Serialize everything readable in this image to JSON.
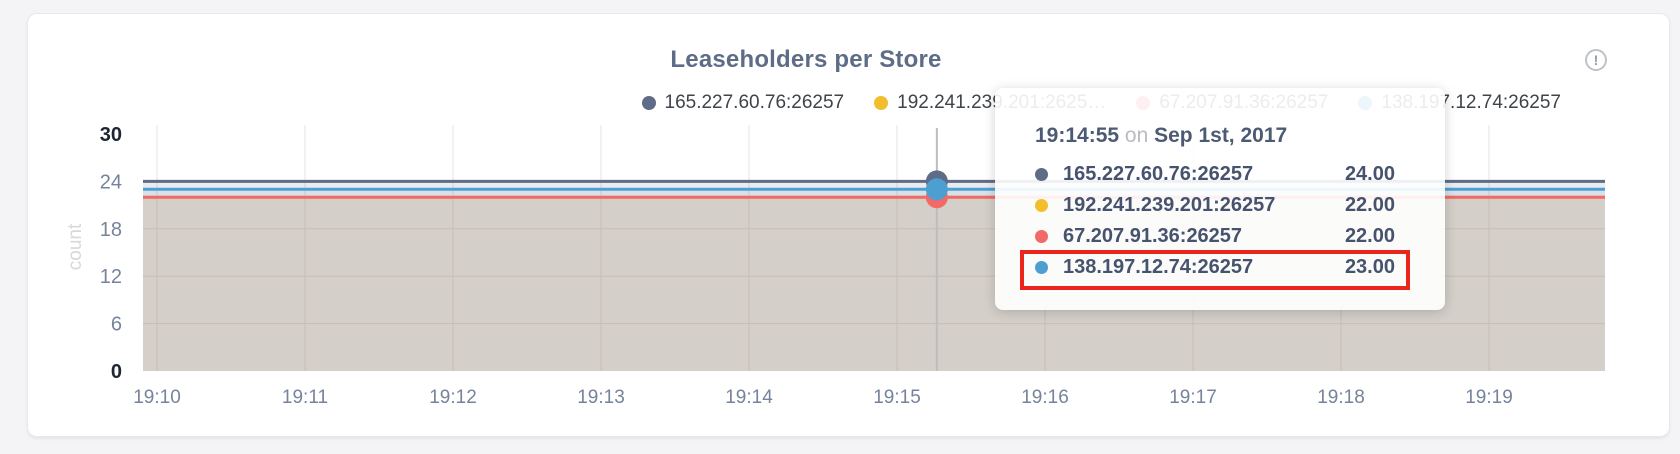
{
  "card": {
    "title": "Leaseholders per Store"
  },
  "chart_data": {
    "type": "area",
    "title": "Leaseholders per Store",
    "xlabel": "",
    "ylabel": "count",
    "ylim": [
      0,
      30
    ],
    "yticks": [
      0,
      6,
      12,
      18,
      24,
      30
    ],
    "xticks": [
      "19:10",
      "19:11",
      "19:12",
      "19:13",
      "19:14",
      "19:15",
      "19:16",
      "19:17",
      "19:18",
      "19:19"
    ],
    "grid": true,
    "legend_position": "top-right",
    "series": [
      {
        "name": "165.227.60.76:26257",
        "legend_label": "165.227.60.76:26257",
        "color": "#5F6C87",
        "value": 24,
        "value_label": "24.00"
      },
      {
        "name": "192.241.239.201:26257",
        "legend_label": "192.241.239.201:2625…",
        "color": "#F2BE2C",
        "value": 22,
        "value_label": "22.00"
      },
      {
        "name": "67.207.91.36:26257",
        "legend_label": "67.207.91.36:26257",
        "color": "#F16969",
        "value": 22,
        "value_label": "22.00"
      },
      {
        "name": "138.197.12.74:26257",
        "legend_label": "138.197.12.74:26257",
        "color": "#4E9FD1",
        "value": 23,
        "value_label": "23.00"
      }
    ],
    "hover": {
      "time": "19:14:55",
      "x_fraction": 0.543
    }
  },
  "tooltip": {
    "time": "19:14:55",
    "connector": "on",
    "date": "Sep 1st, 2017",
    "highlighted_row": 3,
    "highlight_color": "#EA251C"
  },
  "info": {
    "glyph": "!"
  }
}
